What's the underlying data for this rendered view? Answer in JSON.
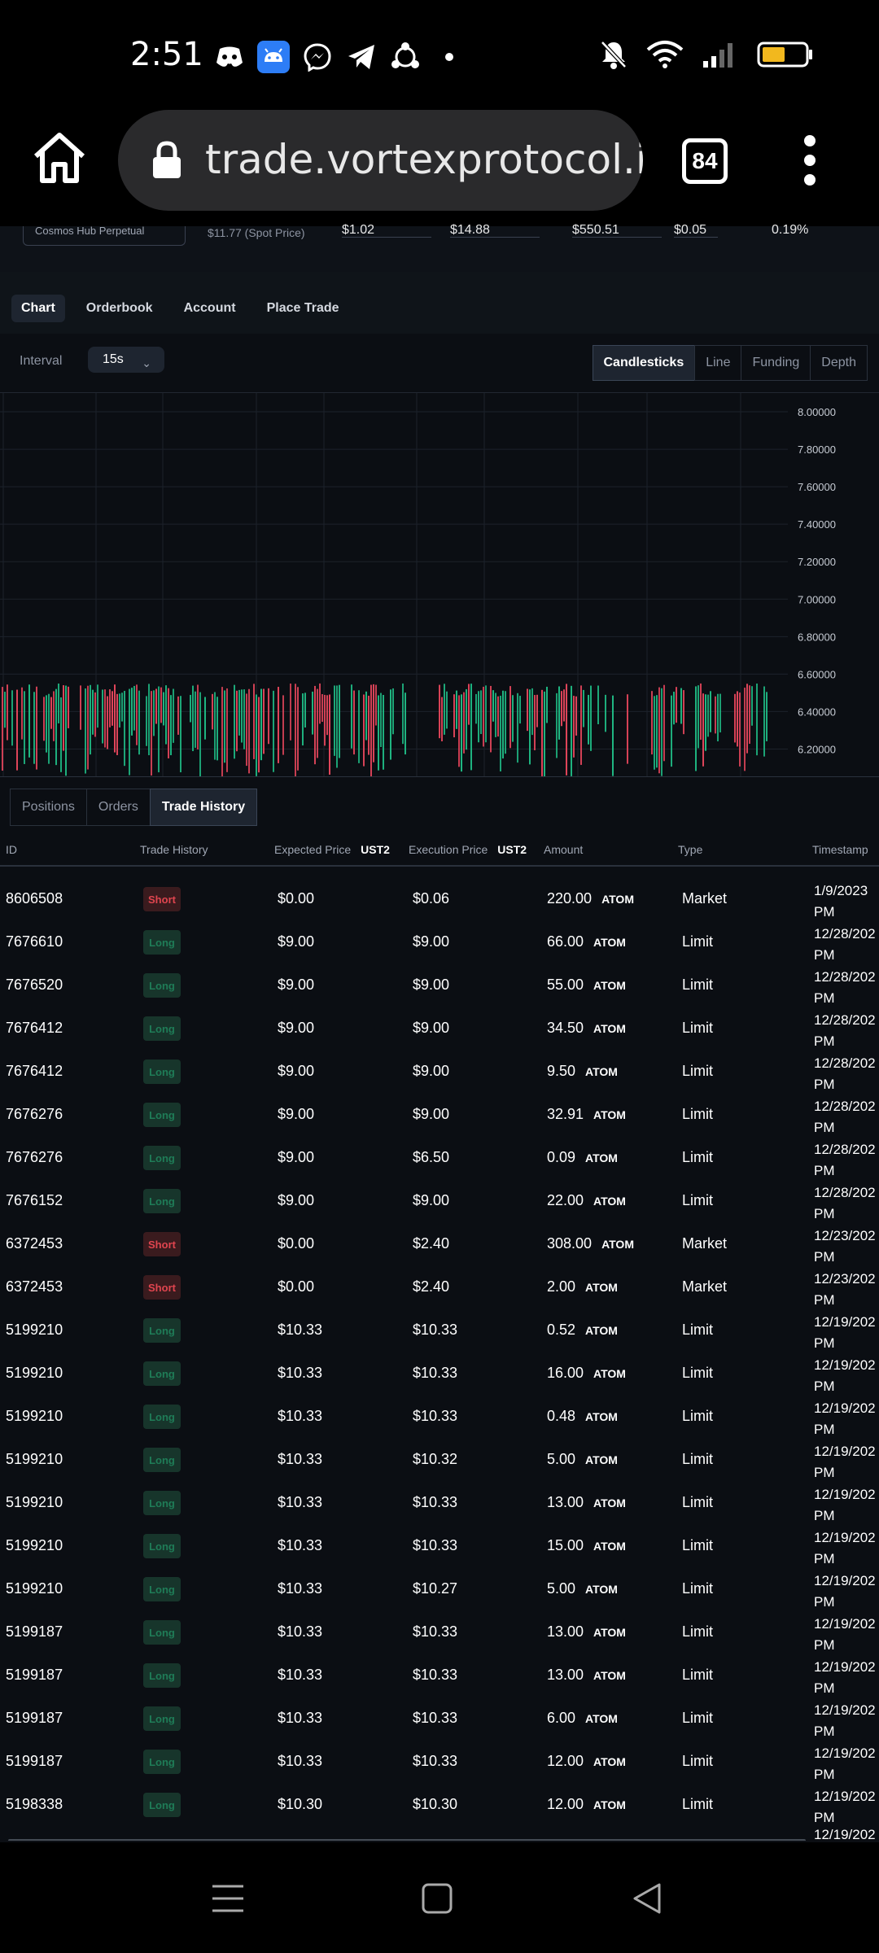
{
  "status_bar": {
    "time": "2:51",
    "left_icons": [
      "discord-icon",
      "android-icon",
      "messenger-icon",
      "telegram-icon",
      "share-icon",
      "dot-icon"
    ],
    "right_icons": [
      "bell-muted-icon",
      "wifi-icon",
      "signal-icon",
      "battery-icon"
    ],
    "battery_color": "#f2b81e"
  },
  "browser": {
    "url": "trade.vortexprotocol.io/t",
    "tab_count": "84"
  },
  "ticker": {
    "market": "Cosmos Hub Perpetual",
    "spot_price": "$11.77 (Spot Price)",
    "values": [
      "$1.02",
      "$14.88",
      "$550.51",
      "$0.05",
      "0.19%"
    ]
  },
  "main_tabs": [
    {
      "label": "Chart",
      "active": true
    },
    {
      "label": "Orderbook",
      "active": false
    },
    {
      "label": "Account",
      "active": false
    },
    {
      "label": "Place Trade",
      "active": false
    }
  ],
  "chart_controls": {
    "interval_label": "Interval",
    "interval_value": "15s",
    "types": [
      {
        "label": "Candlesticks",
        "active": true
      },
      {
        "label": "Line",
        "active": false
      },
      {
        "label": "Funding",
        "active": false
      },
      {
        "label": "Depth",
        "active": false
      }
    ]
  },
  "chart_data": {
    "type": "candlestick",
    "y_ticks": [
      "8.00000",
      "7.80000",
      "7.60000",
      "7.40000",
      "7.20000",
      "7.00000",
      "6.80000",
      "6.60000",
      "6.40000",
      "6.20000"
    ],
    "ylim": [
      6.05,
      8.1
    ],
    "grid": true,
    "up_color": "#1fb883",
    "down_color": "#e0455a",
    "candle_value_range": [
      6.05,
      6.55
    ]
  },
  "sub_tabs": [
    {
      "label": "Positions",
      "active": false
    },
    {
      "label": "Orders",
      "active": false
    },
    {
      "label": "Trade History",
      "active": true
    }
  ],
  "table": {
    "columns": {
      "id": "ID",
      "side": "Trade History",
      "expected": "Expected Price",
      "expected_unit": "UST2",
      "execution": "Execution Price",
      "execution_unit": "UST2",
      "amount": "Amount",
      "type": "Type",
      "timestamp": "Timestamp"
    },
    "rows": [
      {
        "id": "8606508",
        "side": "Short",
        "expected": "$0.00",
        "execution": "$0.06",
        "amount": "220.00",
        "asset": "ATOM",
        "type": "Market",
        "ts1": "1/9/2023",
        "ts2": "PM"
      },
      {
        "id": "7676610",
        "side": "Long",
        "expected": "$9.00",
        "execution": "$9.00",
        "amount": "66.00",
        "asset": "ATOM",
        "type": "Limit",
        "ts1": "12/28/202",
        "ts2": "PM"
      },
      {
        "id": "7676520",
        "side": "Long",
        "expected": "$9.00",
        "execution": "$9.00",
        "amount": "55.00",
        "asset": "ATOM",
        "type": "Limit",
        "ts1": "12/28/202",
        "ts2": "PM"
      },
      {
        "id": "7676412",
        "side": "Long",
        "expected": "$9.00",
        "execution": "$9.00",
        "amount": "34.50",
        "asset": "ATOM",
        "type": "Limit",
        "ts1": "12/28/202",
        "ts2": "PM"
      },
      {
        "id": "7676412",
        "side": "Long",
        "expected": "$9.00",
        "execution": "$9.00",
        "amount": "9.50",
        "asset": "ATOM",
        "type": "Limit",
        "ts1": "12/28/202",
        "ts2": "PM"
      },
      {
        "id": "7676276",
        "side": "Long",
        "expected": "$9.00",
        "execution": "$9.00",
        "amount": "32.91",
        "asset": "ATOM",
        "type": "Limit",
        "ts1": "12/28/202",
        "ts2": "PM"
      },
      {
        "id": "7676276",
        "side": "Long",
        "expected": "$9.00",
        "execution": "$6.50",
        "amount": "0.09",
        "asset": "ATOM",
        "type": "Limit",
        "ts1": "12/28/202",
        "ts2": "PM"
      },
      {
        "id": "7676152",
        "side": "Long",
        "expected": "$9.00",
        "execution": "$9.00",
        "amount": "22.00",
        "asset": "ATOM",
        "type": "Limit",
        "ts1": "12/28/202",
        "ts2": "PM"
      },
      {
        "id": "6372453",
        "side": "Short",
        "expected": "$0.00",
        "execution": "$2.40",
        "amount": "308.00",
        "asset": "ATOM",
        "type": "Market",
        "ts1": "12/23/202",
        "ts2": "PM"
      },
      {
        "id": "6372453",
        "side": "Short",
        "expected": "$0.00",
        "execution": "$2.40",
        "amount": "2.00",
        "asset": "ATOM",
        "type": "Market",
        "ts1": "12/23/202",
        "ts2": "PM"
      },
      {
        "id": "5199210",
        "side": "Long",
        "expected": "$10.33",
        "execution": "$10.33",
        "amount": "0.52",
        "asset": "ATOM",
        "type": "Limit",
        "ts1": "12/19/202",
        "ts2": "PM"
      },
      {
        "id": "5199210",
        "side": "Long",
        "expected": "$10.33",
        "execution": "$10.33",
        "amount": "16.00",
        "asset": "ATOM",
        "type": "Limit",
        "ts1": "12/19/202",
        "ts2": "PM"
      },
      {
        "id": "5199210",
        "side": "Long",
        "expected": "$10.33",
        "execution": "$10.33",
        "amount": "0.48",
        "asset": "ATOM",
        "type": "Limit",
        "ts1": "12/19/202",
        "ts2": "PM"
      },
      {
        "id": "5199210",
        "side": "Long",
        "expected": "$10.33",
        "execution": "$10.32",
        "amount": "5.00",
        "asset": "ATOM",
        "type": "Limit",
        "ts1": "12/19/202",
        "ts2": "PM"
      },
      {
        "id": "5199210",
        "side": "Long",
        "expected": "$10.33",
        "execution": "$10.33",
        "amount": "13.00",
        "asset": "ATOM",
        "type": "Limit",
        "ts1": "12/19/202",
        "ts2": "PM"
      },
      {
        "id": "5199210",
        "side": "Long",
        "expected": "$10.33",
        "execution": "$10.33",
        "amount": "15.00",
        "asset": "ATOM",
        "type": "Limit",
        "ts1": "12/19/202",
        "ts2": "PM"
      },
      {
        "id": "5199210",
        "side": "Long",
        "expected": "$10.33",
        "execution": "$10.27",
        "amount": "5.00",
        "asset": "ATOM",
        "type": "Limit",
        "ts1": "12/19/202",
        "ts2": "PM"
      },
      {
        "id": "5199187",
        "side": "Long",
        "expected": "$10.33",
        "execution": "$10.33",
        "amount": "13.00",
        "asset": "ATOM",
        "type": "Limit",
        "ts1": "12/19/202",
        "ts2": "PM"
      },
      {
        "id": "5199187",
        "side": "Long",
        "expected": "$10.33",
        "execution": "$10.33",
        "amount": "13.00",
        "asset": "ATOM",
        "type": "Limit",
        "ts1": "12/19/202",
        "ts2": "PM"
      },
      {
        "id": "5199187",
        "side": "Long",
        "expected": "$10.33",
        "execution": "$10.33",
        "amount": "6.00",
        "asset": "ATOM",
        "type": "Limit",
        "ts1": "12/19/202",
        "ts2": "PM"
      },
      {
        "id": "5199187",
        "side": "Long",
        "expected": "$10.33",
        "execution": "$10.33",
        "amount": "12.00",
        "asset": "ATOM",
        "type": "Limit",
        "ts1": "12/19/202",
        "ts2": "PM"
      },
      {
        "id": "5198338",
        "side": "Long",
        "expected": "$10.30",
        "execution": "$10.30",
        "amount": "12.00",
        "asset": "ATOM",
        "type": "Limit",
        "ts1": "12/19/202",
        "ts2": "PM"
      }
    ],
    "partial_row_ts": "12/19/202"
  },
  "nav_bar": {
    "buttons": [
      "menu-icon",
      "home-square-icon",
      "back-icon"
    ]
  }
}
